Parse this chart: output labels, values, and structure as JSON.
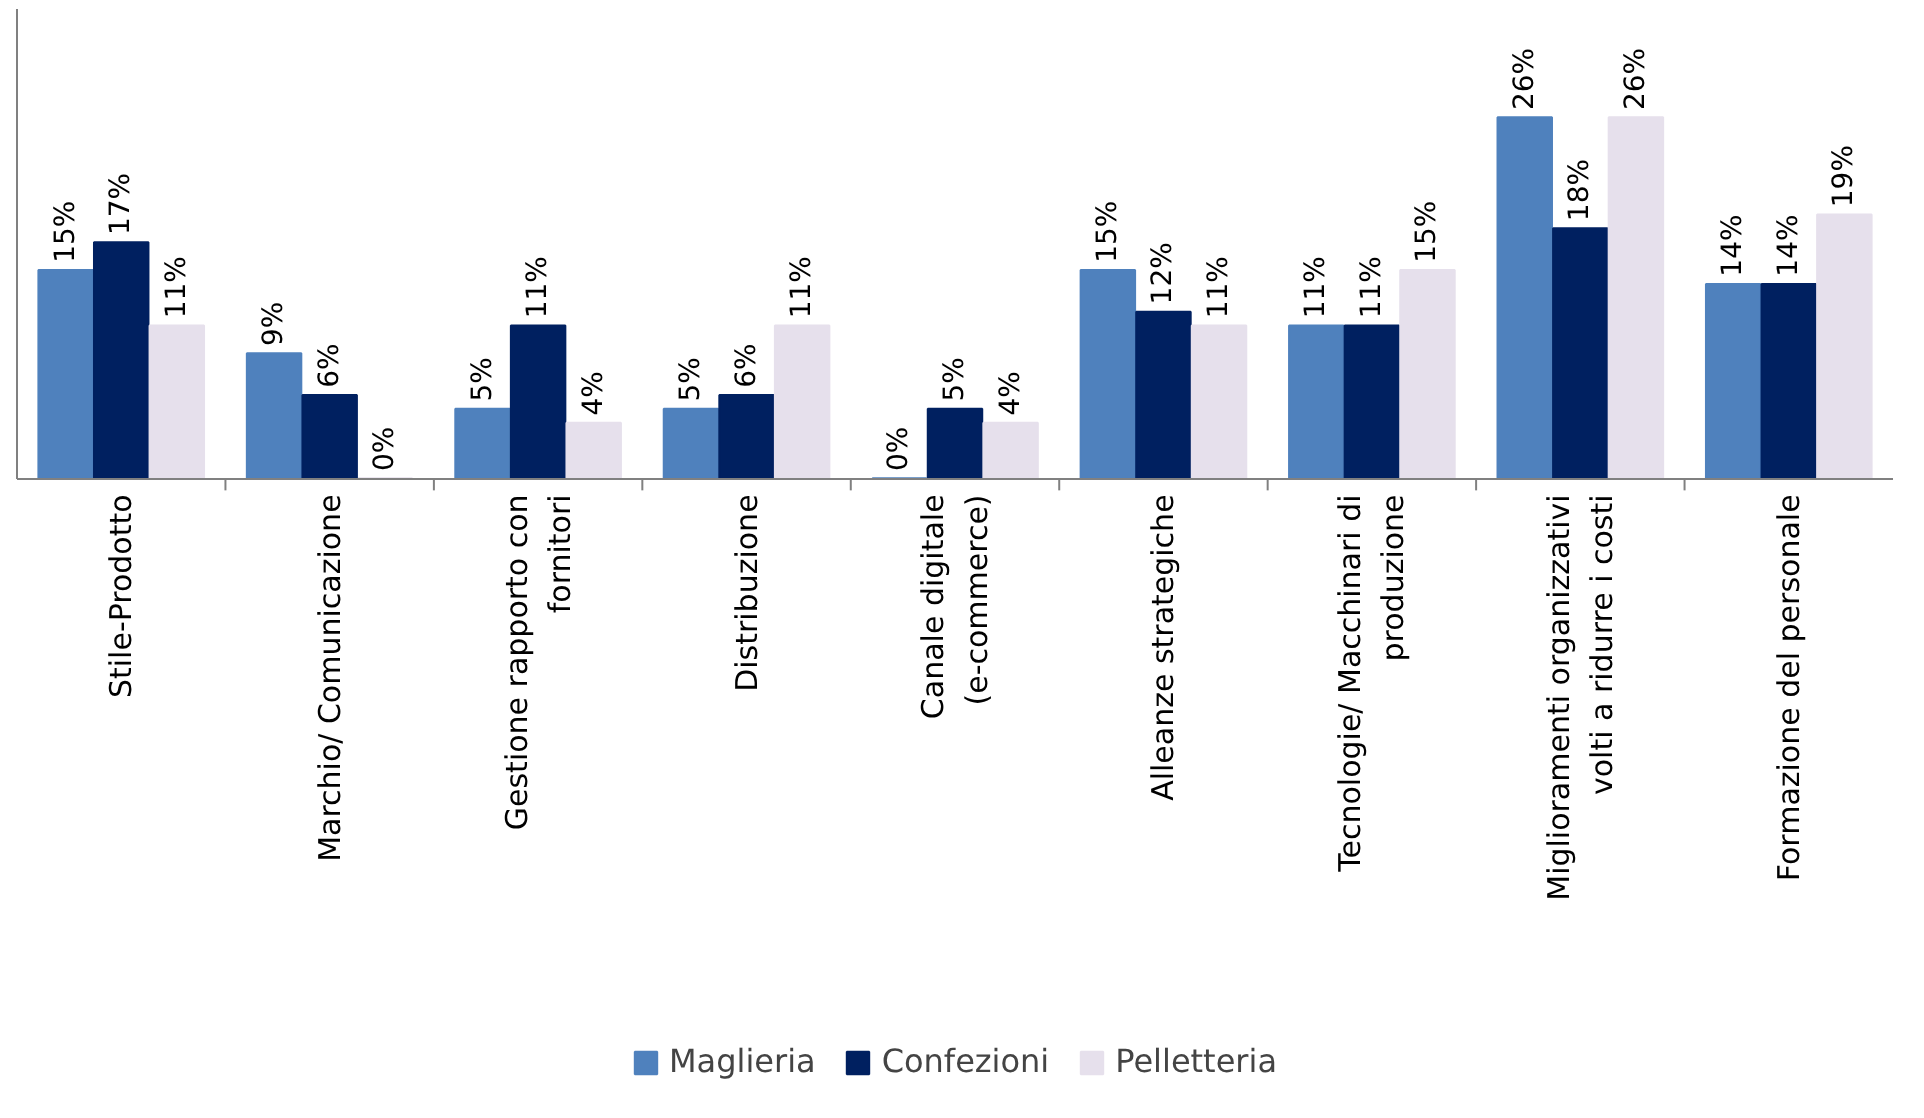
{
  "chart_data": {
    "type": "bar",
    "categories": [
      "Stile-Prodotto",
      "Marchio/ Comunicazione",
      "Gestione rapporto con fornitori",
      "Distribuzione",
      "Canale digitale (e-commerce)",
      "Alleanze strategiche",
      "Tecnologie/ Macchinari di produzione",
      "Miglioramenti organizzativi volti a ridurre i costi",
      "Formazione del personale"
    ],
    "series": [
      {
        "name": "Maglieria",
        "color": "#4f81bd",
        "values": [
          15,
          9,
          5,
          5,
          0,
          15,
          11,
          26,
          14
        ],
        "value_labels": [
          "15%",
          "9%",
          "5%",
          "5%",
          "0%",
          "15%",
          "11%",
          "26%",
          "14%"
        ]
      },
      {
        "name": "Confezioni",
        "color": "#002060",
        "values": [
          17,
          6,
          11,
          6,
          5,
          12,
          11,
          18,
          14
        ],
        "value_labels": [
          "17%",
          "6%",
          "11%",
          "6%",
          "5%",
          "12%",
          "11%",
          "18%",
          "14%"
        ]
      },
      {
        "name": "Pelletteria",
        "color": "#e6e0ec",
        "values": [
          11,
          0,
          4,
          11,
          4,
          11,
          15,
          26,
          19
        ],
        "value_labels": [
          "11%",
          "0%",
          "4%",
          "11%",
          "4%",
          "11%",
          "15%",
          "26%",
          "19%"
        ]
      }
    ],
    "legend": "bottom",
    "grid": false,
    "tick_labels": "x"
  }
}
